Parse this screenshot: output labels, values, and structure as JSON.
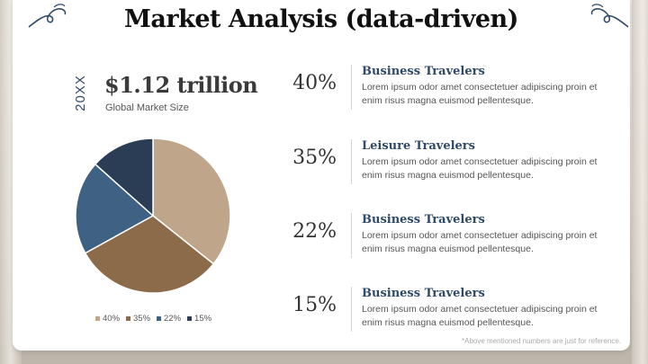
{
  "slide": {
    "title": "Market Analysis (data-driven)",
    "year_label": "20XX",
    "market_size": "$1.12 trillion",
    "market_size_label": "Global Market Size",
    "footnote": "*Above mentioned numbers are just for reference."
  },
  "stats": [
    {
      "percent": "40%",
      "heading": "Business Travelers",
      "body": "Lorem ipsum odor amet consectetuer adipiscing proin et enim risus magna euismod pellentesque."
    },
    {
      "percent": "35%",
      "heading": "Leisure Travelers",
      "body": "Lorem ipsum odor amet consectetuer adipiscing proin et enim risus magna euismod pellentesque."
    },
    {
      "percent": "22%",
      "heading": "Business Travelers",
      "body": "Lorem ipsum odor amet consectetuer adipiscing proin et enim risus magna euismod pellentesque."
    },
    {
      "percent": "15%",
      "heading": "Business Travelers",
      "body": "Lorem ipsum odor amet consectetuer adipiscing proin et enim risus magna euismod pellentesque."
    }
  ],
  "colors": {
    "accent": "#2f4a68",
    "slice_1": "#bfa68b",
    "slice_2": "#8c6b4a",
    "slice_3": "#3f6184",
    "slice_4": "#2a3d55"
  },
  "chart_data": {
    "type": "pie",
    "categories": [
      "40%",
      "35%",
      "22%",
      "15%"
    ],
    "values": [
      40,
      35,
      22,
      15
    ],
    "legend": [
      "40%",
      "35%",
      "22%",
      "15%"
    ],
    "legend_placement": "bottom"
  }
}
